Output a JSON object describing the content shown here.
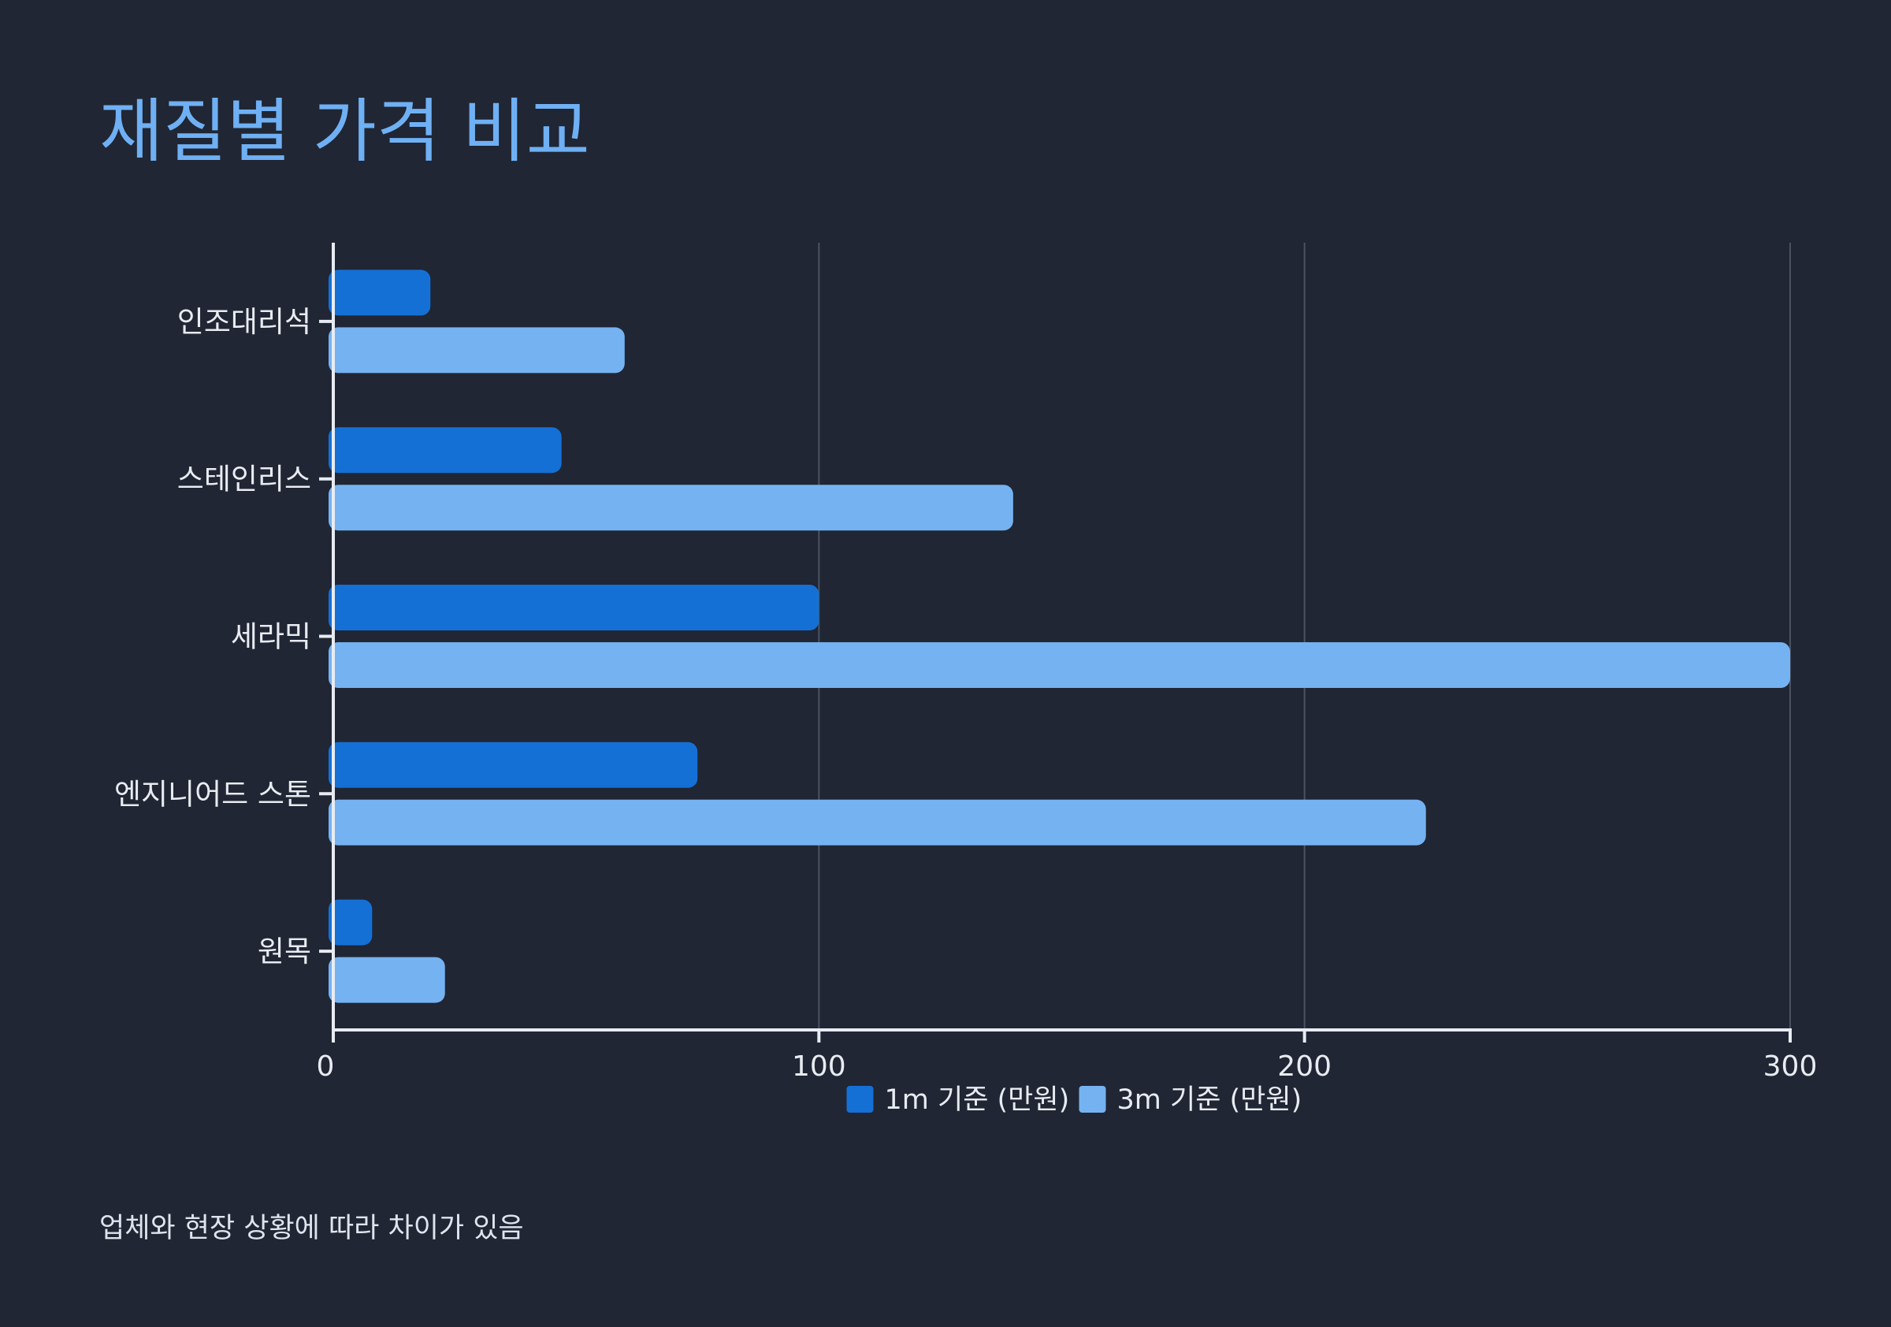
{
  "chart_data": {
    "type": "bar",
    "orientation": "horizontal",
    "title": "재질별 가격 비교",
    "note": "업체와 현장 상황에 따라 차이가 있음",
    "categories": [
      "인조대리석",
      "스테인리스",
      "세라믹",
      "엔지니어드 스톤",
      "원목"
    ],
    "series": [
      {
        "name": "1m 기준 (만원)",
        "values": [
          20,
          47,
          100,
          75,
          8
        ],
        "color": "#1570d6"
      },
      {
        "name": "3m 기준 (만원)",
        "values": [
          60,
          140,
          300,
          225,
          23
        ],
        "color": "#75b2f2"
      }
    ],
    "xlim": [
      0,
      300
    ],
    "xticks": [
      0,
      100,
      200,
      300
    ],
    "grid": true,
    "legend_position": "bottom-center"
  }
}
